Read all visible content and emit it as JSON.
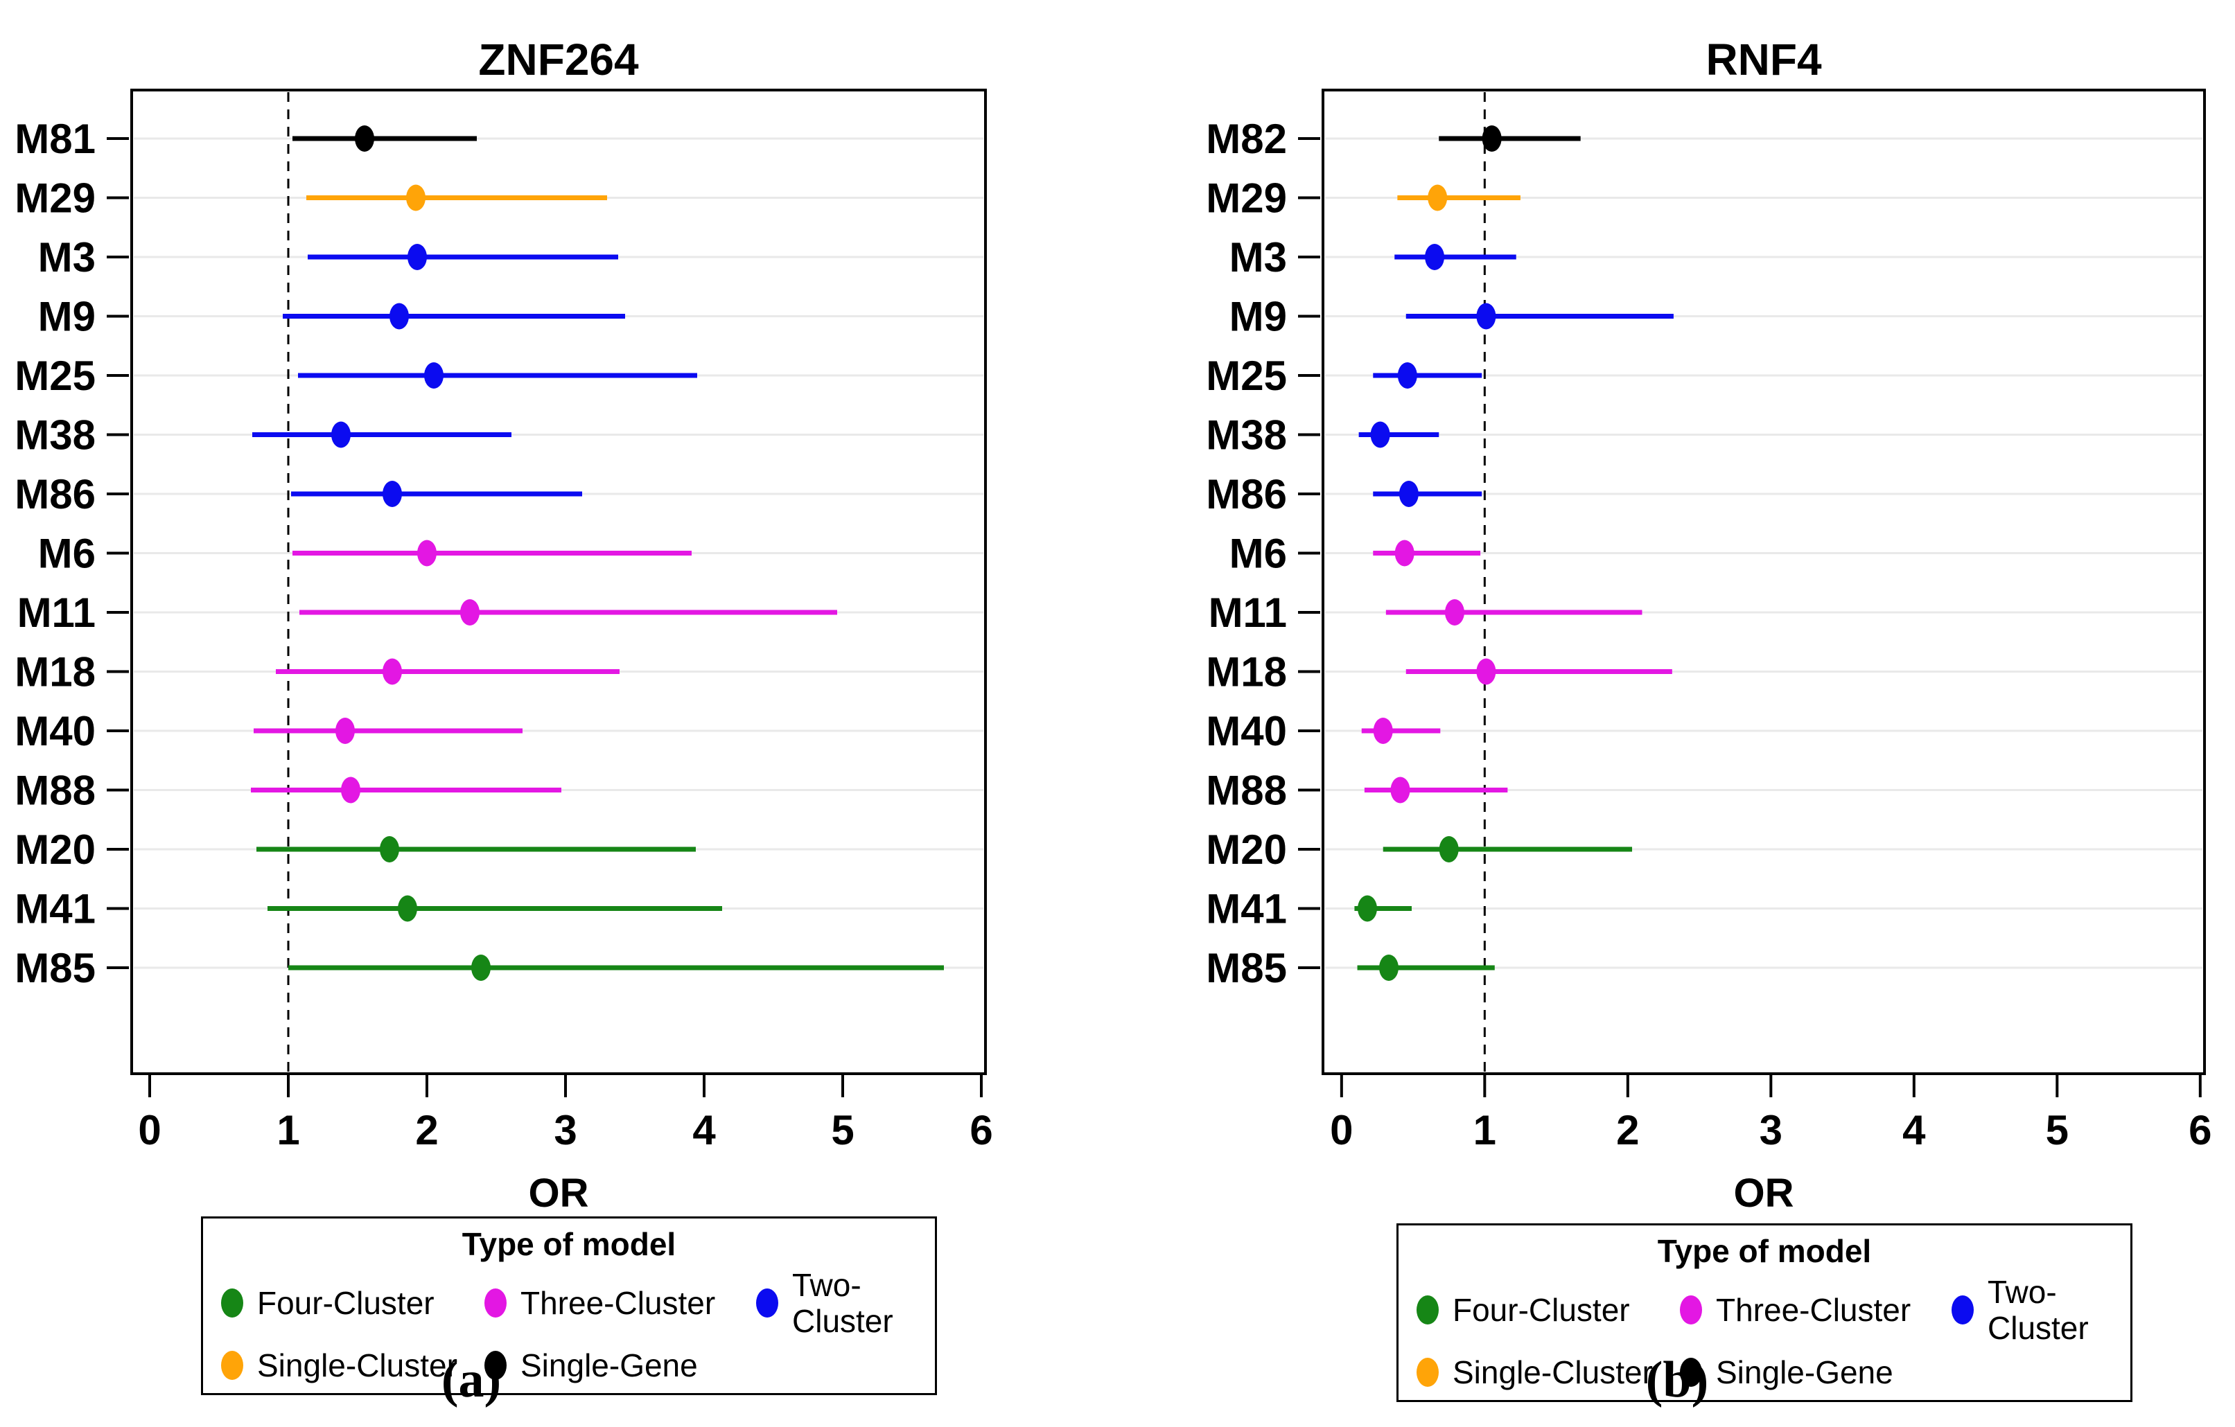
{
  "figure": {
    "captions": {
      "a": "(a)",
      "b": "(b)"
    },
    "legend": {
      "title": "Type of model",
      "items": [
        {
          "label": "Four-Cluster"
        },
        {
          "label": "Three-Cluster"
        },
        {
          "label": "Two-Cluster"
        },
        {
          "label": "Single-Cluster"
        },
        {
          "label": "Single-Gene"
        }
      ]
    },
    "colors": {
      "Four-Cluster": "#168616",
      "Three-Cluster": "#E317E3",
      "Two-Cluster": "#0B0BF0",
      "Single-Cluster": "#FFA408",
      "Single-Gene": "#000000",
      "gridline": "#e9e9e9",
      "reference_line": "#000000"
    }
  },
  "chart_data": [
    {
      "type": "scatter",
      "subtype": "forest-plot",
      "title": "ZNF264",
      "xlabel": "OR",
      "xlim": [
        -0.13,
        6.03
      ],
      "xticks": [
        0,
        1,
        2,
        3,
        4,
        5,
        6
      ],
      "ref_line_x": 1,
      "grid": "horizontal-only",
      "rows": [
        {
          "label": "M81",
          "type": "Single-Gene",
          "or": 1.55,
          "ci_low": 1.03,
          "ci_high": 2.36
        },
        {
          "label": "M29",
          "type": "Single-Cluster",
          "or": 1.92,
          "ci_low": 1.13,
          "ci_high": 3.3
        },
        {
          "label": "M3",
          "type": "Two-Cluster",
          "or": 1.93,
          "ci_low": 1.14,
          "ci_high": 3.38
        },
        {
          "label": "M9",
          "type": "Two-Cluster",
          "or": 1.8,
          "ci_low": 0.96,
          "ci_high": 3.43
        },
        {
          "label": "M25",
          "type": "Two-Cluster",
          "or": 2.05,
          "ci_low": 1.07,
          "ci_high": 3.95
        },
        {
          "label": "M38",
          "type": "Two-Cluster",
          "or": 1.38,
          "ci_low": 0.74,
          "ci_high": 2.61
        },
        {
          "label": "M86",
          "type": "Two-Cluster",
          "or": 1.75,
          "ci_low": 1.02,
          "ci_high": 3.12
        },
        {
          "label": "M6",
          "type": "Three-Cluster",
          "or": 2.0,
          "ci_low": 1.03,
          "ci_high": 3.91
        },
        {
          "label": "M11",
          "type": "Three-Cluster",
          "or": 2.31,
          "ci_low": 1.08,
          "ci_high": 4.96
        },
        {
          "label": "M18",
          "type": "Three-Cluster",
          "or": 1.75,
          "ci_low": 0.91,
          "ci_high": 3.39
        },
        {
          "label": "M40",
          "type": "Three-Cluster",
          "or": 1.41,
          "ci_low": 0.75,
          "ci_high": 2.69
        },
        {
          "label": "M88",
          "type": "Three-Cluster",
          "or": 1.45,
          "ci_low": 0.73,
          "ci_high": 2.97
        },
        {
          "label": "M20",
          "type": "Four-Cluster",
          "or": 1.73,
          "ci_low": 0.77,
          "ci_high": 3.94
        },
        {
          "label": "M41",
          "type": "Four-Cluster",
          "or": 1.86,
          "ci_low": 0.85,
          "ci_high": 4.13
        },
        {
          "label": "M85",
          "type": "Four-Cluster",
          "or": 2.39,
          "ci_low": 1.0,
          "ci_high": 5.73
        }
      ]
    },
    {
      "type": "scatter",
      "subtype": "forest-plot",
      "title": "RNF4",
      "xlabel": "OR",
      "xlim": [
        -0.13,
        6.03
      ],
      "xticks": [
        0,
        1,
        2,
        3,
        4,
        5,
        6
      ],
      "ref_line_x": 1,
      "grid": "horizontal-only",
      "rows": [
        {
          "label": "M82",
          "type": "Single-Gene",
          "or": 1.05,
          "ci_low": 0.68,
          "ci_high": 1.67
        },
        {
          "label": "M29",
          "type": "Single-Cluster",
          "or": 0.67,
          "ci_low": 0.39,
          "ci_high": 1.25
        },
        {
          "label": "M3",
          "type": "Two-Cluster",
          "or": 0.65,
          "ci_low": 0.37,
          "ci_high": 1.22
        },
        {
          "label": "M9",
          "type": "Two-Cluster",
          "or": 1.01,
          "ci_low": 0.45,
          "ci_high": 2.32
        },
        {
          "label": "M25",
          "type": "Two-Cluster",
          "or": 0.46,
          "ci_low": 0.22,
          "ci_high": 0.98
        },
        {
          "label": "M38",
          "type": "Two-Cluster",
          "or": 0.27,
          "ci_low": 0.12,
          "ci_high": 0.68
        },
        {
          "label": "M86",
          "type": "Two-Cluster",
          "or": 0.47,
          "ci_low": 0.22,
          "ci_high": 0.98
        },
        {
          "label": "M6",
          "type": "Three-Cluster",
          "or": 0.44,
          "ci_low": 0.22,
          "ci_high": 0.97
        },
        {
          "label": "M11",
          "type": "Three-Cluster",
          "or": 0.79,
          "ci_low": 0.31,
          "ci_high": 2.1
        },
        {
          "label": "M18",
          "type": "Three-Cluster",
          "or": 1.01,
          "ci_low": 0.45,
          "ci_high": 2.31
        },
        {
          "label": "M40",
          "type": "Three-Cluster",
          "or": 0.29,
          "ci_low": 0.14,
          "ci_high": 0.69
        },
        {
          "label": "M88",
          "type": "Three-Cluster",
          "or": 0.41,
          "ci_low": 0.16,
          "ci_high": 1.16
        },
        {
          "label": "M20",
          "type": "Four-Cluster",
          "or": 0.75,
          "ci_low": 0.29,
          "ci_high": 2.03
        },
        {
          "label": "M41",
          "type": "Four-Cluster",
          "or": 0.18,
          "ci_low": 0.09,
          "ci_high": 0.49
        },
        {
          "label": "M85",
          "type": "Four-Cluster",
          "or": 0.33,
          "ci_low": 0.11,
          "ci_high": 1.07
        }
      ]
    }
  ]
}
